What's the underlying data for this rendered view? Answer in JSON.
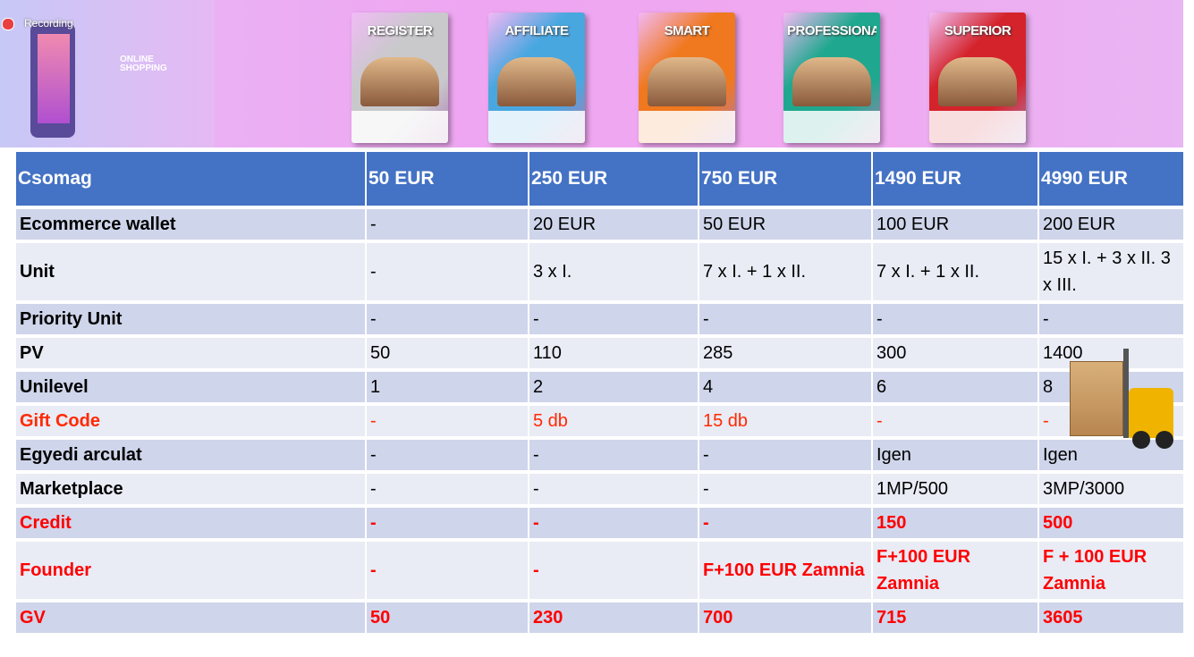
{
  "recording": "Recording",
  "banner": {
    "shop_text": "ONLINE SHOPPING",
    "boxes": [
      {
        "name": "REGISTER",
        "color": "#c9c9cc"
      },
      {
        "name": "AFFILIATE",
        "color": "#49a7e0"
      },
      {
        "name": "SMART",
        "color": "#f0781e"
      },
      {
        "name": "PROFESSIONAL",
        "color": "#1fa88f"
      },
      {
        "name": "SUPERIOR",
        "color": "#d4232b"
      }
    ]
  },
  "table": {
    "header": [
      "Csomag",
      "50 EUR",
      "250 EUR",
      "750 EUR",
      "1490 EUR",
      "4990 EUR"
    ],
    "rows": [
      {
        "cells": [
          "Ecommerce wallet",
          "-",
          "20 EUR",
          "50 EUR",
          "100 EUR",
          "200 EUR"
        ]
      },
      {
        "cells": [
          "Unit",
          "-",
          "3 x I.",
          "7 x I. + 1 x II.",
          "7 x I. + 1 x II.",
          "15 x I. + 3 x II. 3 x III."
        ]
      },
      {
        "cells": [
          "Priority Unit",
          "-",
          "-",
          "-",
          "-",
          "-"
        ]
      },
      {
        "cells": [
          "PV",
          "50",
          "110",
          "285",
          "300",
          "1400"
        ]
      },
      {
        "cells": [
          "Unilevel",
          "1",
          "2",
          "4",
          "6",
          "8"
        ]
      },
      {
        "cells": [
          "Gift Code",
          "-",
          "5 db",
          "15 db",
          "-",
          "-"
        ],
        "color": "#ff2a00"
      },
      {
        "cells": [
          "Egyedi arculat",
          "-",
          "-",
          "-",
          "Igen",
          "Igen"
        ]
      },
      {
        "cells": [
          "Marketplace",
          "-",
          "-",
          "-",
          "1MP/500",
          "3MP/3000"
        ]
      },
      {
        "cells": [
          "Credit",
          "-",
          "-",
          "-",
          "150",
          "500"
        ],
        "color": "#ff0000",
        "bold": true
      },
      {
        "cells": [
          "Founder",
          "-",
          "-",
          "F+100 EUR Zamnia",
          "F+100 EUR Zamnia",
          "F + 100 EUR Zamnia"
        ],
        "color": "#ff0000",
        "bold": true
      },
      {
        "cells": [
          "GV",
          "50",
          "230",
          "700",
          "715",
          "3605"
        ],
        "color": "#ff0000",
        "bold": true
      }
    ]
  }
}
